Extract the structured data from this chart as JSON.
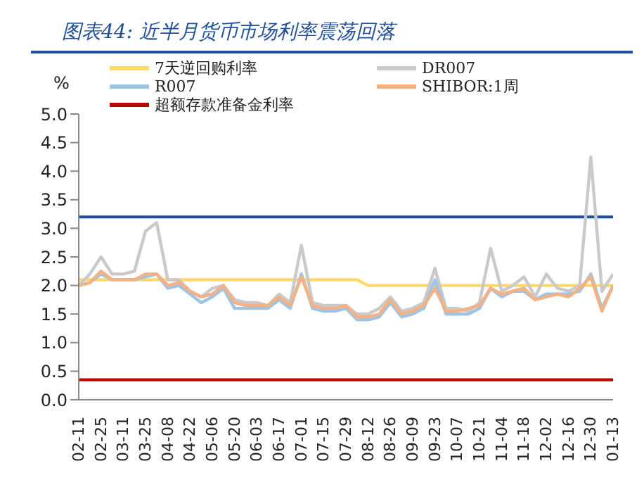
{
  "chart_data": {
    "type": "line",
    "title": "图表44: 近半月货币市场利率震荡回落",
    "ylabel": "%",
    "categories": [
      "02-11",
      null,
      "02-25",
      null,
      "03-11",
      null,
      "03-25",
      null,
      "04-08",
      null,
      "04-22",
      null,
      "05-06",
      null,
      "05-20",
      null,
      "06-03",
      null,
      "06-17",
      null,
      "07-01",
      null,
      "07-15",
      null,
      "07-29",
      null,
      "08-12",
      null,
      "08-26",
      null,
      "09-09",
      null,
      "09-23",
      null,
      "10-07",
      null,
      "10-21",
      null,
      "11-04",
      null,
      "11-18",
      null,
      "12-02",
      null,
      "12-16",
      null,
      "12-30",
      null,
      "01-13"
    ],
    "series": [
      {
        "name": "7天逆回购利率",
        "color": "#ffd966",
        "values": [
          2.1,
          2.1,
          2.1,
          2.1,
          2.1,
          2.1,
          2.1,
          2.1,
          2.1,
          2.1,
          2.1,
          2.1,
          2.1,
          2.1,
          2.1,
          2.1,
          2.1,
          2.1,
          2.1,
          2.1,
          2.1,
          2.1,
          2.1,
          2.1,
          2.1,
          2.1,
          2.0,
          2.0,
          2.0,
          2.0,
          2.0,
          2.0,
          2.0,
          2.0,
          2.0,
          2.0,
          2.0,
          2.0,
          2.0,
          2.0,
          2.0,
          2.0,
          2.0,
          2.0,
          2.0,
          2.0,
          2.0,
          2.0,
          2.0
        ]
      },
      {
        "name": "DR007",
        "color": "#c9c9c9",
        "values": [
          2.0,
          2.2,
          2.5,
          2.2,
          2.2,
          2.25,
          2.95,
          3.1,
          2.1,
          2.1,
          1.9,
          1.8,
          1.95,
          2.0,
          1.75,
          1.7,
          1.7,
          1.65,
          1.85,
          1.7,
          2.7,
          1.7,
          1.65,
          1.65,
          1.65,
          1.5,
          1.5,
          1.6,
          1.8,
          1.55,
          1.6,
          1.7,
          2.3,
          1.6,
          1.6,
          1.55,
          1.7,
          2.65,
          1.9,
          2.0,
          2.15,
          1.8,
          2.2,
          1.95,
          1.9,
          2.0,
          4.25,
          1.9,
          2.2
        ]
      },
      {
        "name": "R007",
        "color": "#9dc3e6",
        "values": [
          2.0,
          2.05,
          2.2,
          2.1,
          2.1,
          2.1,
          2.15,
          2.2,
          1.95,
          2.0,
          1.85,
          1.7,
          1.8,
          1.95,
          1.6,
          1.6,
          1.6,
          1.6,
          1.75,
          1.6,
          2.2,
          1.6,
          1.55,
          1.55,
          1.6,
          1.4,
          1.4,
          1.45,
          1.7,
          1.45,
          1.5,
          1.6,
          2.1,
          1.5,
          1.5,
          1.5,
          1.6,
          1.95,
          1.8,
          1.9,
          1.9,
          1.75,
          1.85,
          1.85,
          1.85,
          1.9,
          2.2,
          1.6,
          2.0
        ]
      },
      {
        "name": "SHIBOR:1周",
        "color": "#f4b183",
        "values": [
          2.0,
          2.05,
          2.25,
          2.1,
          2.1,
          2.1,
          2.2,
          2.2,
          2.0,
          2.05,
          1.9,
          1.8,
          1.85,
          2.0,
          1.7,
          1.65,
          1.65,
          1.65,
          1.8,
          1.65,
          2.15,
          1.65,
          1.6,
          1.6,
          1.65,
          1.45,
          1.45,
          1.5,
          1.75,
          1.5,
          1.55,
          1.65,
          1.95,
          1.55,
          1.55,
          1.6,
          1.65,
          1.95,
          1.85,
          1.9,
          1.95,
          1.75,
          1.8,
          1.85,
          1.8,
          1.95,
          2.15,
          1.55,
          2.0
        ]
      },
      {
        "name": "超额存款准备金利率",
        "color": "#c00000",
        "values": [
          0.35,
          0.35,
          0.35,
          0.35,
          0.35,
          0.35,
          0.35,
          0.35,
          0.35,
          0.35,
          0.35,
          0.35,
          0.35,
          0.35,
          0.35,
          0.35,
          0.35,
          0.35,
          0.35,
          0.35,
          0.35,
          0.35,
          0.35,
          0.35,
          0.35,
          0.35,
          0.35,
          0.35,
          0.35,
          0.35,
          0.35,
          0.35,
          0.35,
          0.35,
          0.35,
          0.35,
          0.35,
          0.35,
          0.35,
          0.35,
          0.35,
          0.35,
          0.35,
          0.35,
          0.35,
          0.35,
          0.35,
          0.35,
          0.35
        ]
      }
    ],
    "ref_lines": [
      {
        "axis": "y",
        "value": 3.2,
        "color": "#1f4e9a"
      }
    ],
    "ylim": [
      0,
      5
    ],
    "yticks": [
      {
        "value": 0,
        "label": "0.0"
      },
      0.5,
      {
        "value": 1,
        "label": "1.0"
      },
      1.5,
      {
        "value": 2,
        "label": "2.0"
      },
      2.5,
      {
        "value": 3,
        "label": "3.0"
      },
      3.5,
      {
        "value": 4,
        "label": "4.0"
      },
      4.5,
      {
        "value": 5,
        "label": "5.0"
      }
    ],
    "grid": false,
    "legend": "top",
    "marker": "none",
    "line_style": "solid"
  }
}
